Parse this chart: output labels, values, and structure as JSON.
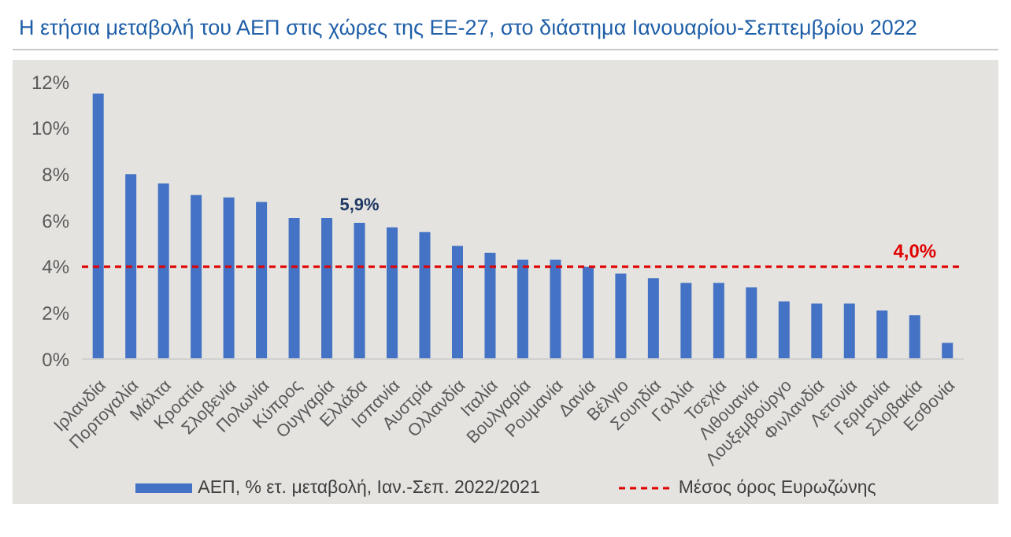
{
  "chart_data": {
    "type": "bar",
    "title": "Η ετήσια μεταβολή του ΑΕΠ στις χώρες της ΕΕ-27, στο διάστημα Ιανουαρίου-Σεπτεμβρίου 2022",
    "categories": [
      "Ιρλανδία",
      "Πορτογαλία",
      "Μάλτα",
      "Κροατία",
      "Σλοβενία",
      "Πολωνία",
      "Κύπρος",
      "Ουγγαρία",
      "Ελλάδα",
      "Ισπανία",
      "Αυστρία",
      "Ολλανδία",
      "Ιταλία",
      "Βουλγαρία",
      "Ρουμανία",
      "Δανία",
      "Βέλγιο",
      "Σουηδία",
      "Γαλλία",
      "Τσεχία",
      "Λιθουανία",
      "Λουξεμβούργο",
      "Φινλανδία",
      "Λετονία",
      "Γερμανία",
      "Σλοβακία",
      "Εσθονία"
    ],
    "series": [
      {
        "name": "ΑΕΠ, % ετ. μεταβολή, Ιαν.-Σεπ. 2022/2021",
        "color": "#4472c4",
        "values": [
          11.5,
          8.0,
          7.6,
          7.1,
          7.0,
          6.8,
          6.1,
          6.1,
          5.9,
          5.7,
          5.5,
          4.9,
          4.6,
          4.3,
          4.3,
          4.0,
          3.7,
          3.5,
          3.3,
          3.3,
          3.1,
          2.5,
          2.4,
          2.4,
          2.1,
          1.9,
          0.7
        ],
        "value_labels": [
          null,
          null,
          null,
          null,
          null,
          null,
          null,
          null,
          "5,9%",
          null,
          null,
          null,
          null,
          null,
          null,
          null,
          null,
          null,
          null,
          null,
          null,
          null,
          null,
          null,
          null,
          null,
          null
        ]
      }
    ],
    "ylim": [
      0,
      12
    ],
    "yticks": [
      {
        "value": 0,
        "label": "0%"
      },
      {
        "value": 2,
        "label": "2%"
      },
      {
        "value": 4,
        "label": "4%"
      },
      {
        "value": 6,
        "label": "6%"
      },
      {
        "value": 8,
        "label": "8%"
      },
      {
        "value": 10,
        "label": "10%"
      },
      {
        "value": 12,
        "label": "12%"
      }
    ],
    "ref_lines": [
      {
        "axis": "y",
        "value": 4.0,
        "label": "Μέσος όρος Ευρωζώνης",
        "color": "#e00000",
        "line_style": "dashed"
      }
    ],
    "annotations": [
      {
        "text": "4,0%",
        "x": "Σλοβακία",
        "y": 4.0
      }
    ],
    "legend": "bottom",
    "grid": false
  }
}
